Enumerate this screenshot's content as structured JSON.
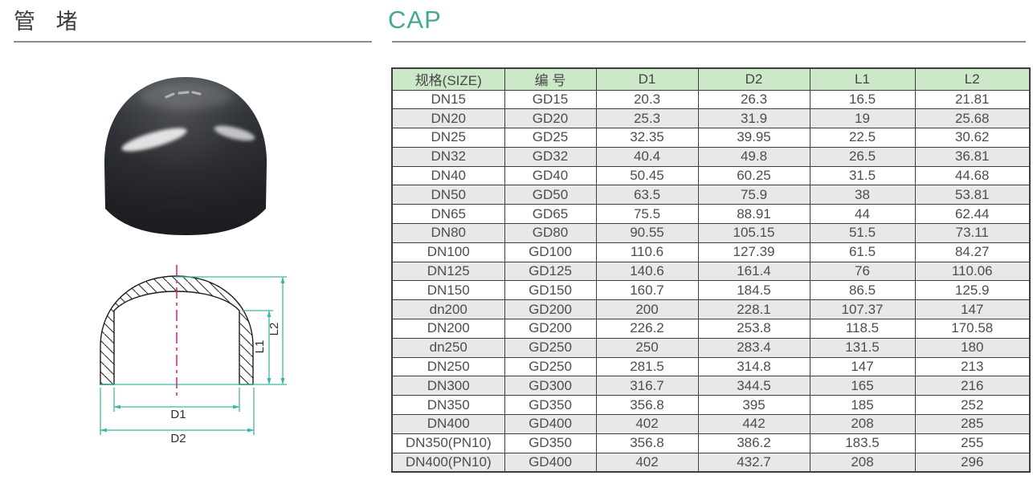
{
  "page": {
    "title_cn": "管 堵",
    "title_en": "CAP"
  },
  "colors": {
    "accent_teal": "#45a893",
    "table_header_bg": "#cde7c9",
    "table_alt_row_bg": "#e8e8e8",
    "table_border": "#3d3d3d",
    "drawing_dimension_teal": "#3eb6a5",
    "drawing_centerline_pink": "#ee1677",
    "text_gray": "#4d4d4d",
    "underline_gray": "#8c8c8c"
  },
  "diagram": {
    "labels": {
      "d1": "D1",
      "d2": "D2",
      "l1": "L1",
      "l2": "L2"
    }
  },
  "table": {
    "headers": [
      "规格(SIZE)",
      "编 号",
      "D1",
      "D2",
      "L1",
      "L2"
    ],
    "rows": [
      [
        "DN15",
        "GD15",
        "20.3",
        "26.3",
        "16.5",
        "21.81"
      ],
      [
        "DN20",
        "GD20",
        "25.3",
        "31.9",
        "19",
        "25.68"
      ],
      [
        "DN25",
        "GD25",
        "32.35",
        "39.95",
        "22.5",
        "30.62"
      ],
      [
        "DN32",
        "GD32",
        "40.4",
        "49.8",
        "26.5",
        "36.81"
      ],
      [
        "DN40",
        "GD40",
        "50.45",
        "60.25",
        "31.5",
        "44.68"
      ],
      [
        "DN50",
        "GD50",
        "63.5",
        "75.9",
        "38",
        "53.81"
      ],
      [
        "DN65",
        "GD65",
        "75.5",
        "88.91",
        "44",
        "62.44"
      ],
      [
        "DN80",
        "GD80",
        "90.55",
        "105.15",
        "51.5",
        "73.11"
      ],
      [
        "DN100",
        "GD100",
        "110.6",
        "127.39",
        "61.5",
        "84.27"
      ],
      [
        "DN125",
        "GD125",
        "140.6",
        "161.4",
        "76",
        "110.06"
      ],
      [
        "DN150",
        "GD150",
        "160.7",
        "184.5",
        "86.5",
        "125.9"
      ],
      [
        "dn200",
        "GD200",
        "200",
        "228.1",
        "107.37",
        "147"
      ],
      [
        "DN200",
        "GD200",
        "226.2",
        "253.8",
        "118.5",
        "170.58"
      ],
      [
        "dn250",
        "GD250",
        "250",
        "283.4",
        "131.5",
        "180"
      ],
      [
        "DN250",
        "GD250",
        "281.5",
        "314.8",
        "147",
        "213"
      ],
      [
        "DN300",
        "GD300",
        "316.7",
        "344.5",
        "165",
        "216"
      ],
      [
        "DN350",
        "GD350",
        "356.8",
        "395",
        "185",
        "252"
      ],
      [
        "DN400",
        "GD400",
        "402",
        "442",
        "208",
        "285"
      ],
      [
        "DN350(PN10)",
        "GD350",
        "356.8",
        "386.2",
        "183.5",
        "255"
      ],
      [
        "DN400(PN10)",
        "GD400",
        "402",
        "432.7",
        "208",
        "296"
      ]
    ]
  }
}
